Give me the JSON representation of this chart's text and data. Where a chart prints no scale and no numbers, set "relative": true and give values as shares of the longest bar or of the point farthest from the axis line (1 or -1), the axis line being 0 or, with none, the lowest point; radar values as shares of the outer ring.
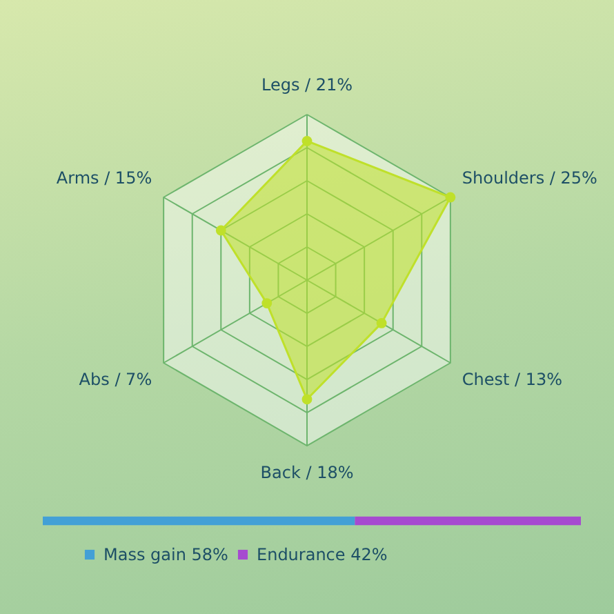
{
  "chart_data": [
    {
      "type": "radar",
      "relative": true,
      "grid": true,
      "marker": "circle",
      "categories": [
        "Legs / 21%",
        "Shoulders / 25%",
        "Chest / 13%",
        "Back / 18%",
        "Abs / 7%",
        "Arms / 15%"
      ],
      "series": [
        {
          "color": "#bfe02a",
          "values": [
            0.84,
            1,
            0.52,
            0.72,
            0.28,
            0.6
          ]
        }
      ]
    },
    {
      "type": "bar",
      "relative": true,
      "stacked": true,
      "orientation": "horizontal",
      "legend": "bottom left",
      "categories": [
        null
      ],
      "series": [
        {
          "name": "Mass gain 58%",
          "color": "#43a0d6",
          "values": [
            0.58
          ]
        },
        {
          "name": "Endurance 42%",
          "color": "#a64ad0",
          "values": [
            0.42
          ]
        }
      ]
    }
  ]
}
